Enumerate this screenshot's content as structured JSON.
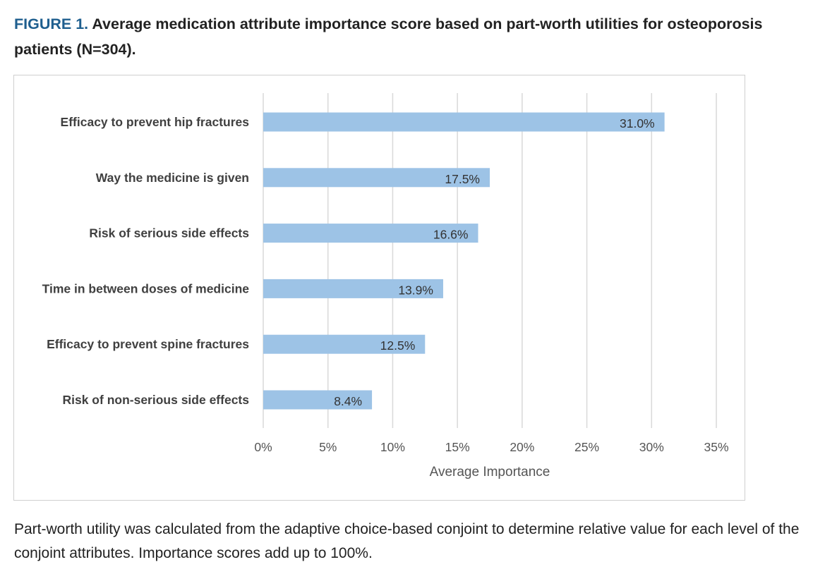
{
  "figure": {
    "label": "FIGURE 1.",
    "title": "Average medication attribute importance score based on part-worth utilities for osteoporosis patients (N=304).",
    "caption": "Part-worth utility was calculated from the adaptive choice-based conjoint to determine relative value for each level of the conjoint attributes. Importance scores add up to 100%."
  },
  "chart_data": {
    "type": "bar",
    "orientation": "horizontal",
    "categories": [
      "Efficacy to prevent hip fractures",
      "Way the medicine is given",
      "Risk of serious side effects",
      "Time in between doses of medicine",
      "Efficacy to prevent spine fractures",
      "Risk of non-serious side effects"
    ],
    "values": [
      31.0,
      17.5,
      16.6,
      13.9,
      12.5,
      8.4
    ],
    "data_labels": [
      "31.0%",
      "17.5%",
      "16.6%",
      "13.9%",
      "12.5%",
      "8.4%"
    ],
    "xlabel": "Average Importance",
    "ylabel": "",
    "xlim": [
      0,
      35
    ],
    "xticks": [
      0,
      5,
      10,
      15,
      20,
      25,
      30,
      35
    ],
    "xtick_labels": [
      "0%",
      "5%",
      "10%",
      "15%",
      "20%",
      "25%",
      "30%",
      "35%"
    ],
    "grid": "vertical",
    "legend": "none",
    "bar_color": "#9dc3e6",
    "grid_color": "#d9d9d9"
  }
}
